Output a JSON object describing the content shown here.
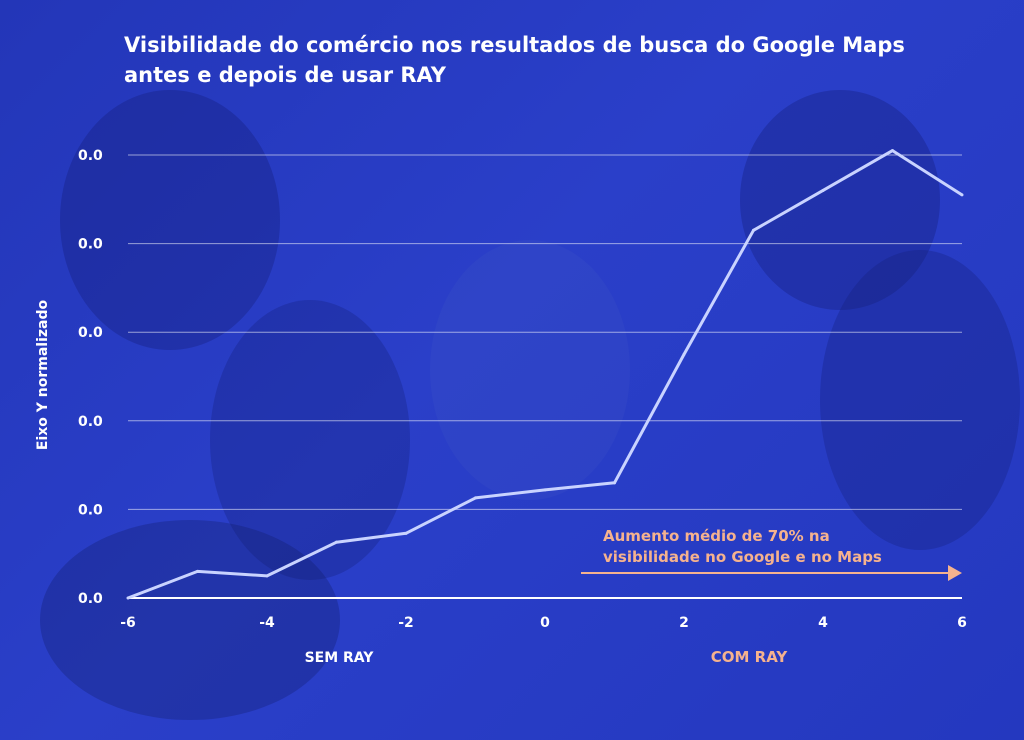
{
  "colors": {
    "background": "#2a3cc4",
    "line": "#c9d3ff",
    "grid": "#ffffff",
    "text": "#ffffff",
    "accent": "#f5b28e"
  },
  "chart_data": {
    "type": "line",
    "title": "Visibilidade do comércio nos resultados de busca do Google Maps",
    "subtitle": "antes e depois de usar RAY",
    "ylabel": "Eixo Y normalizado",
    "x_ticks": [
      "-6",
      "-4",
      "-2",
      "0",
      "2",
      "4",
      "6"
    ],
    "y_ticks": [
      "0.0",
      "0.0",
      "0.0",
      "0.0",
      "0.0",
      "0.0"
    ],
    "xlim": [
      -6,
      6
    ],
    "ylim": [
      0,
      5
    ],
    "grid": true,
    "series": [
      {
        "x": [
          -6,
          -5,
          -4,
          -3,
          -2,
          -1,
          0,
          1,
          2,
          3,
          4,
          5,
          6
        ],
        "y": [
          0.0,
          0.3,
          0.25,
          0.63,
          0.73,
          1.13,
          1.22,
          1.3,
          2.75,
          4.15,
          4.6,
          5.05,
          4.55
        ]
      }
    ],
    "group_labels": {
      "before": "SEM RAY",
      "after": "COM RAY"
    },
    "annotation": {
      "line1": "Aumento médio de 70% na",
      "line2": "visibilidade no Google e no Maps"
    }
  }
}
